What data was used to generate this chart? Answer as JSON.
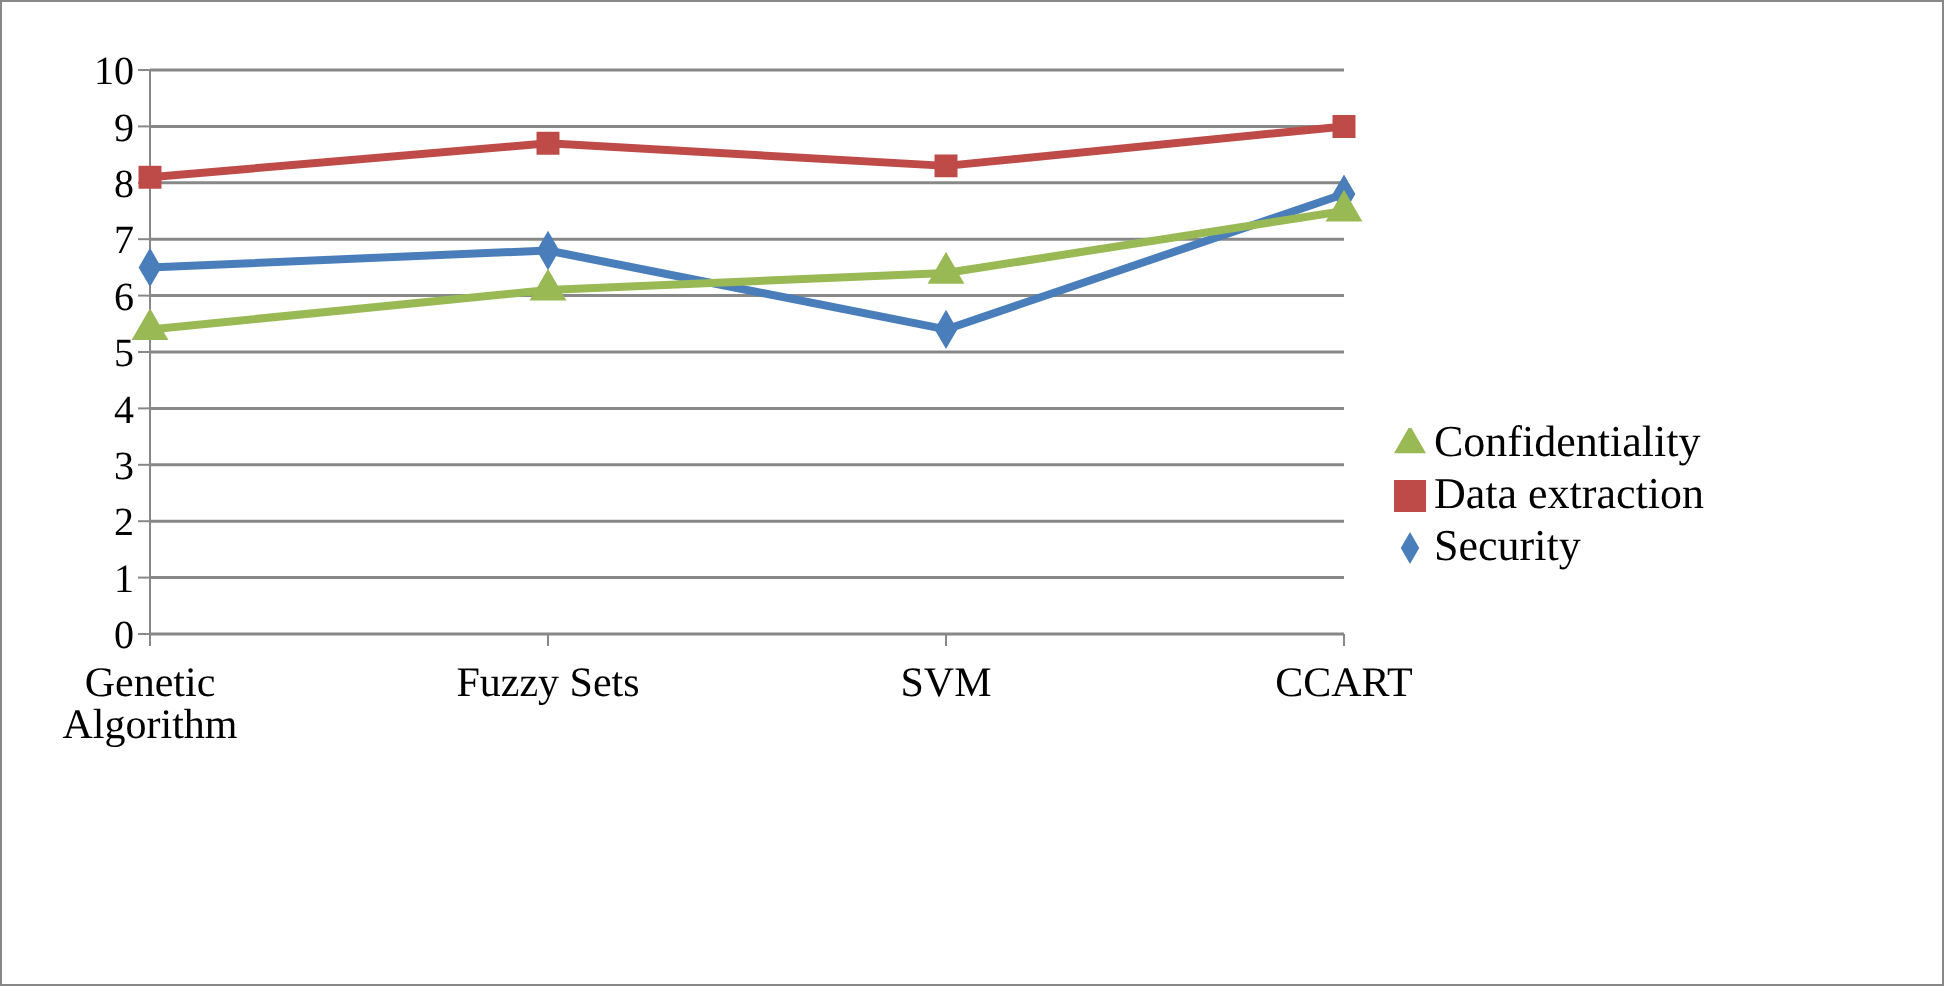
{
  "chart_data": {
    "type": "line",
    "categories": [
      "Genetic Algorithm",
      "Fuzzy Sets",
      "SVM",
      "CCART"
    ],
    "series": [
      {
        "name": "Security",
        "color": "#4a7ebb",
        "marker": "diamond",
        "values": [
          6.5,
          6.8,
          5.4,
          7.8
        ]
      },
      {
        "name": "Data extraction",
        "color": "#be4b48",
        "marker": "square",
        "values": [
          8.1,
          8.7,
          8.3,
          9.0
        ]
      },
      {
        "name": "Confidentiality",
        "color": "#98b954",
        "marker": "triangle",
        "values": [
          5.4,
          6.1,
          6.4,
          7.5
        ]
      }
    ],
    "ylim": [
      0,
      10
    ],
    "yticks": [
      0,
      1,
      2,
      3,
      4,
      5,
      6,
      7,
      8,
      9,
      10
    ],
    "grid": "y",
    "legend": "right"
  }
}
